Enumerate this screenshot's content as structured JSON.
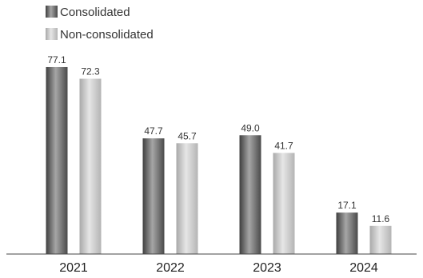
{
  "chart_data": {
    "type": "bar",
    "title": "",
    "xlabel": "",
    "ylabel": "",
    "categories": [
      "2021",
      "2022",
      "2023",
      "2024"
    ],
    "series": [
      {
        "name": "Consolidated",
        "values": [
          77.1,
          47.7,
          49.0,
          17.1
        ],
        "labels": [
          "77.1",
          "47.7",
          "49.0",
          "17.1"
        ],
        "color": "#6e6e6e"
      },
      {
        "name": "Non-consolidated",
        "values": [
          72.3,
          45.7,
          41.7,
          11.6
        ],
        "labels": [
          "72.3",
          "45.7",
          "41.7",
          "11.6"
        ],
        "color": "#c8c8c8"
      }
    ],
    "ylim": [
      0,
      85
    ],
    "grid": false,
    "legend_position": "top-left"
  }
}
